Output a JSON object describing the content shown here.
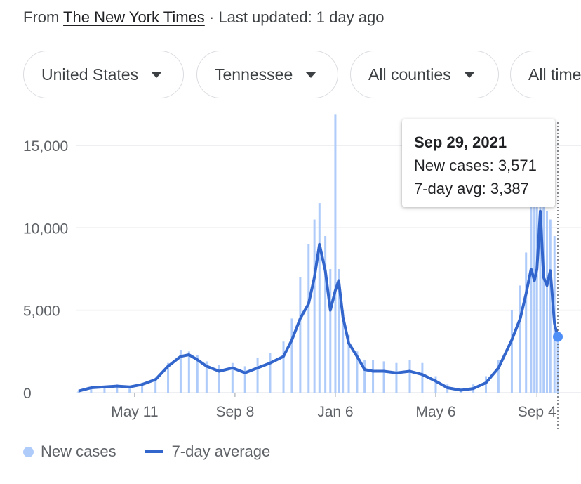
{
  "source": {
    "prefix": "From ",
    "publisher": "The New York Times",
    "updated": " · Last updated: 1 day ago"
  },
  "filters": [
    {
      "label": "United States"
    },
    {
      "label": "Tennessee"
    },
    {
      "label": "All counties"
    },
    {
      "label": "All time"
    }
  ],
  "tooltip": {
    "date": "Sep 29, 2021",
    "new_cases_label": "New cases: 3,571",
    "avg_label": "7-day avg: 3,387"
  },
  "legend": {
    "bars": "New cases",
    "line": "7-day average"
  },
  "colors": {
    "bars": "#aecbfa",
    "line": "#3366cc",
    "grid": "#e8eaed",
    "marker": "#4d8ef7"
  },
  "chart_data": {
    "type": "bar",
    "title": "",
    "xlabel": "",
    "ylabel": "",
    "ylim": [
      0,
      17000
    ],
    "yticks": [
      0,
      5000,
      10000,
      15000
    ],
    "ytick_labels": [
      "0",
      "5,000",
      "10,000",
      "15,000"
    ],
    "xtick_labels": [
      "May 11",
      "Sep 8",
      "Jan 6",
      "May 6",
      "Sep 4"
    ],
    "xtick_dates": [
      "2020-05-11",
      "2020-09-08",
      "2021-01-06",
      "2021-05-06",
      "2021-09-04"
    ],
    "x": [
      "2020-03-05",
      "2020-03-20",
      "2020-04-05",
      "2020-04-20",
      "2020-05-05",
      "2020-05-20",
      "2020-06-05",
      "2020-06-20",
      "2020-07-05",
      "2020-07-15",
      "2020-07-25",
      "2020-08-05",
      "2020-08-20",
      "2020-09-05",
      "2020-09-20",
      "2020-10-05",
      "2020-10-20",
      "2020-11-05",
      "2020-11-15",
      "2020-11-25",
      "2020-12-05",
      "2020-12-12",
      "2020-12-18",
      "2020-12-25",
      "2020-12-31",
      "2021-01-06",
      "2021-01-10",
      "2021-01-15",
      "2021-01-22",
      "2021-02-01",
      "2021-02-10",
      "2021-02-20",
      "2021-03-05",
      "2021-03-20",
      "2021-04-05",
      "2021-04-20",
      "2021-05-06",
      "2021-05-20",
      "2021-06-05",
      "2021-06-20",
      "2021-07-05",
      "2021-07-20",
      "2021-08-05",
      "2021-08-15",
      "2021-08-22",
      "2021-08-28",
      "2021-09-01",
      "2021-09-04",
      "2021-09-08",
      "2021-09-12",
      "2021-09-16",
      "2021-09-20",
      "2021-09-25",
      "2021-09-29"
    ],
    "series": [
      {
        "name": "7-day average",
        "values": [
          100,
          300,
          350,
          400,
          350,
          500,
          800,
          1600,
          2200,
          2300,
          2000,
          1600,
          1300,
          1500,
          1200,
          1500,
          1800,
          2200,
          3200,
          4500,
          5400,
          7000,
          9000,
          7400,
          5000,
          6200,
          6800,
          4600,
          3000,
          2200,
          1400,
          1300,
          1300,
          1200,
          1300,
          1100,
          700,
          300,
          150,
          250,
          600,
          1500,
          3200,
          4500,
          6000,
          7500,
          6800,
          7500,
          11000,
          7000,
          6500,
          7400,
          4200,
          3387
        ]
      },
      {
        "name": "New cases",
        "values": [
          100,
          300,
          400,
          500,
          400,
          600,
          900,
          1800,
          2600,
          2500,
          2300,
          1900,
          1700,
          1800,
          1600,
          2100,
          2400,
          3100,
          4500,
          7000,
          9000,
          10500,
          11500,
          9500,
          7500,
          16900,
          7500,
          5000,
          3500,
          2500,
          2000,
          2000,
          1900,
          1800,
          2000,
          1800,
          1000,
          500,
          300,
          500,
          1000,
          2000,
          5000,
          6500,
          8500,
          12000,
          11800,
          12000,
          12500,
          11500,
          11000,
          10500,
          9500,
          3571
        ]
      }
    ]
  }
}
